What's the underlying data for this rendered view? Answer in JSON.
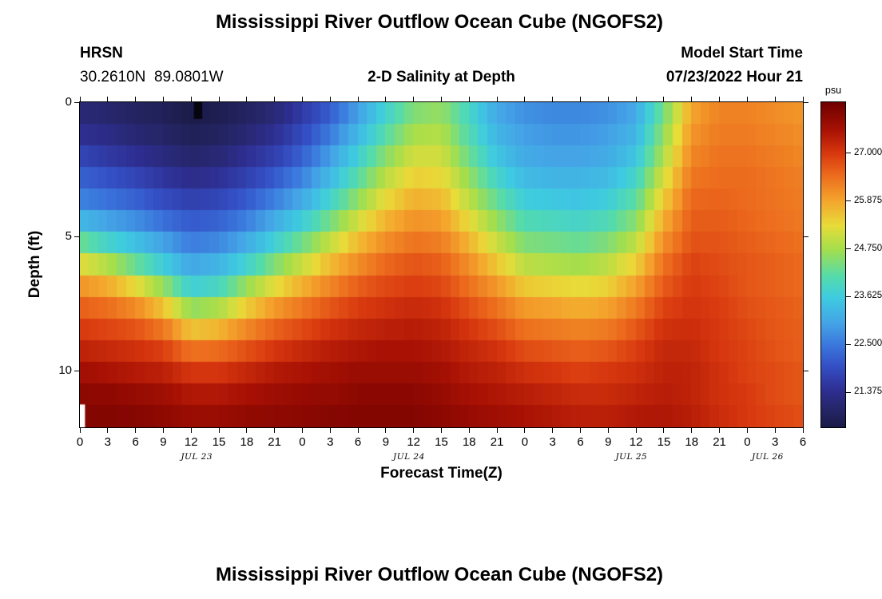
{
  "header": {
    "station_id": "HRSN",
    "station_coords": "30.2610N  89.0801W",
    "model_start_label": "Model Start Time",
    "model_start_value": "07/23/2022 Hour 21"
  },
  "footer": {
    "next_title": "Mississippi River Outflow Ocean Cube (NGOFS2)"
  },
  "chart_data": {
    "type": "heatmap",
    "title": "Mississippi River Outflow Ocean Cube (NGOFS2)",
    "subtitle": "2-D Salinity at Depth",
    "xlabel": "Forecast Time(Z)",
    "ylabel": "Depth (ft)",
    "colorbar_label": "psu",
    "x_range": [
      0,
      78
    ],
    "depth_range": [
      0,
      12.1
    ],
    "value_range": [
      20.55,
      28.2
    ],
    "grid": "off",
    "x_ticks": [
      {
        "hour": 0,
        "label": "0"
      },
      {
        "hour": 3,
        "label": "3"
      },
      {
        "hour": 6,
        "label": "6"
      },
      {
        "hour": 9,
        "label": "9"
      },
      {
        "hour": 12,
        "label": "12"
      },
      {
        "hour": 15,
        "label": "15"
      },
      {
        "hour": 18,
        "label": "18"
      },
      {
        "hour": 21,
        "label": "21"
      },
      {
        "hour": 24,
        "label": "0"
      },
      {
        "hour": 27,
        "label": "3"
      },
      {
        "hour": 30,
        "label": "6"
      },
      {
        "hour": 33,
        "label": "9"
      },
      {
        "hour": 36,
        "label": "12"
      },
      {
        "hour": 39,
        "label": "15"
      },
      {
        "hour": 42,
        "label": "18"
      },
      {
        "hour": 45,
        "label": "21"
      },
      {
        "hour": 48,
        "label": "0"
      },
      {
        "hour": 51,
        "label": "3"
      },
      {
        "hour": 54,
        "label": "6"
      },
      {
        "hour": 57,
        "label": "9"
      },
      {
        "hour": 60,
        "label": "12"
      },
      {
        "hour": 63,
        "label": "15"
      },
      {
        "hour": 66,
        "label": "18"
      },
      {
        "hour": 69,
        "label": "21"
      },
      {
        "hour": 72,
        "label": "0"
      },
      {
        "hour": 75,
        "label": "3"
      },
      {
        "hour": 78,
        "label": "6"
      }
    ],
    "day_labels": [
      {
        "hour": 12.6,
        "label": "JUL 23"
      },
      {
        "hour": 35.5,
        "label": "JUL 24"
      },
      {
        "hour": 59.5,
        "label": "JUL 25"
      },
      {
        "hour": 74.2,
        "label": "JUL 26"
      }
    ],
    "y_ticks": [
      {
        "depth": 0,
        "label": "0"
      },
      {
        "depth": 5,
        "label": "5"
      },
      {
        "depth": 10,
        "label": "10"
      }
    ],
    "colorbar_ticks": [
      {
        "value": 27.0,
        "label": "27.000"
      },
      {
        "value": 25.875,
        "label": "25.875"
      },
      {
        "value": 24.75,
        "label": "24.750"
      },
      {
        "value": 23.625,
        "label": "23.625"
      },
      {
        "value": 22.5,
        "label": "22.500"
      },
      {
        "value": 21.375,
        "label": "21.375"
      }
    ],
    "colormap": [
      {
        "v": 20.55,
        "c": "#1b1b47"
      },
      {
        "v": 21.0,
        "c": "#26266b"
      },
      {
        "v": 21.4,
        "c": "#2e2e91"
      },
      {
        "v": 22.0,
        "c": "#3450c6"
      },
      {
        "v": 22.5,
        "c": "#3b79dd"
      },
      {
        "v": 23.0,
        "c": "#44a4e6"
      },
      {
        "v": 23.6,
        "c": "#3ecbe0"
      },
      {
        "v": 24.1,
        "c": "#55dbab"
      },
      {
        "v": 24.75,
        "c": "#a6de4b"
      },
      {
        "v": 25.3,
        "c": "#e8dc39"
      },
      {
        "v": 25.875,
        "c": "#f4a52d"
      },
      {
        "v": 26.5,
        "c": "#ec6a1d"
      },
      {
        "v": 27.0,
        "c": "#d8380f"
      },
      {
        "v": 27.55,
        "c": "#a81104"
      },
      {
        "v": 28.2,
        "c": "#6f0000"
      }
    ],
    "hours": [
      0,
      3,
      6,
      9,
      12,
      15,
      18,
      21,
      24,
      27,
      30,
      33,
      36,
      39,
      42,
      45,
      48,
      51,
      54,
      57,
      60,
      63,
      66,
      69,
      72,
      75,
      78
    ],
    "depths": [
      0,
      1,
      2,
      3,
      4,
      5,
      6,
      7,
      8,
      9,
      10,
      11,
      12
    ],
    "values": [
      [
        21.0,
        20.9,
        20.8,
        20.7,
        20.5,
        20.6,
        20.8,
        21.0,
        21.5,
        22.0,
        22.8,
        23.6,
        24.3,
        24.5,
        23.8,
        23.0,
        22.7,
        22.6,
        22.6,
        22.7,
        23.0,
        24.2,
        25.8,
        26.2,
        26.2,
        26.1,
        26.0
      ],
      [
        21.3,
        21.2,
        21.0,
        20.9,
        20.7,
        20.8,
        21.0,
        21.3,
        21.8,
        22.4,
        23.2,
        24.0,
        24.7,
        24.8,
        24.0,
        23.2,
        22.9,
        22.8,
        22.8,
        22.9,
        23.2,
        24.5,
        26.0,
        26.3,
        26.3,
        26.2,
        26.1
      ],
      [
        21.8,
        21.6,
        21.4,
        21.2,
        21.0,
        21.1,
        21.4,
        21.7,
        22.2,
        22.9,
        23.7,
        24.5,
        25.1,
        25.1,
        24.3,
        23.5,
        23.1,
        23.0,
        23.0,
        23.1,
        23.5,
        24.8,
        26.2,
        26.4,
        26.4,
        26.3,
        26.2
      ],
      [
        22.3,
        22.1,
        21.9,
        21.6,
        21.4,
        21.5,
        21.8,
        22.2,
        22.7,
        23.4,
        24.2,
        25.0,
        25.5,
        25.4,
        24.7,
        23.9,
        23.4,
        23.3,
        23.3,
        23.4,
        23.9,
        25.2,
        26.4,
        26.5,
        26.5,
        26.4,
        26.3
      ],
      [
        22.8,
        22.6,
        22.4,
        22.1,
        21.9,
        22.0,
        22.3,
        22.8,
        23.3,
        24.0,
        24.8,
        25.5,
        25.9,
        25.8,
        25.1,
        24.4,
        23.8,
        23.7,
        23.6,
        23.8,
        24.3,
        25.6,
        26.6,
        26.6,
        26.5,
        26.4,
        26.3
      ],
      [
        24.0,
        23.5,
        23.2,
        22.8,
        22.4,
        22.5,
        22.9,
        23.5,
        24.1,
        24.8,
        25.5,
        26.0,
        26.3,
        26.2,
        25.6,
        24.9,
        24.3,
        24.2,
        24.1,
        24.3,
        24.8,
        26.0,
        26.7,
        26.7,
        26.6,
        26.5,
        26.4
      ],
      [
        25.2,
        24.8,
        24.2,
        23.6,
        23.0,
        23.2,
        23.7,
        24.4,
        25.0,
        25.6,
        26.1,
        26.5,
        26.7,
        26.6,
        26.1,
        25.5,
        24.9,
        24.8,
        24.7,
        24.9,
        25.4,
        26.4,
        26.9,
        26.8,
        26.7,
        26.6,
        26.5
      ],
      [
        26.2,
        26.0,
        25.5,
        24.8,
        23.8,
        24.0,
        24.8,
        25.4,
        25.9,
        26.3,
        26.7,
        26.9,
        27.0,
        26.9,
        26.5,
        26.1,
        25.6,
        25.5,
        25.4,
        25.5,
        26.0,
        26.7,
        27.0,
        26.9,
        26.7,
        26.6,
        26.5
      ],
      [
        26.8,
        26.7,
        26.5,
        26.0,
        25.0,
        25.2,
        25.8,
        26.3,
        26.6,
        26.9,
        27.1,
        27.2,
        27.3,
        27.2,
        26.9,
        26.6,
        26.2,
        26.1,
        26.0,
        26.1,
        26.5,
        27.0,
        27.1,
        27.0,
        26.8,
        26.7,
        26.6
      ],
      [
        27.2,
        27.1,
        27.0,
        26.8,
        26.2,
        26.3,
        26.6,
        26.9,
        27.1,
        27.3,
        27.4,
        27.5,
        27.5,
        27.4,
        27.2,
        27.0,
        26.7,
        26.6,
        26.5,
        26.6,
        26.9,
        27.2,
        27.2,
        27.0,
        26.9,
        26.7,
        26.6
      ],
      [
        27.6,
        27.5,
        27.4,
        27.3,
        27.0,
        27.0,
        27.2,
        27.4,
        27.5,
        27.6,
        27.7,
        27.7,
        27.7,
        27.6,
        27.4,
        27.3,
        27.1,
        27.0,
        26.9,
        27.0,
        27.1,
        27.3,
        27.3,
        27.1,
        26.9,
        26.8,
        26.7
      ],
      [
        27.9,
        27.9,
        27.8,
        27.7,
        27.5,
        27.5,
        27.6,
        27.7,
        27.8,
        27.8,
        27.9,
        27.9,
        27.9,
        27.8,
        27.6,
        27.5,
        27.4,
        27.3,
        27.2,
        27.2,
        27.3,
        27.4,
        27.3,
        27.1,
        27.0,
        26.8,
        26.7
      ],
      [
        28.0,
        28.0,
        28.0,
        27.9,
        27.8,
        27.8,
        27.9,
        27.9,
        27.9,
        28.0,
        28.0,
        28.0,
        28.0,
        27.9,
        27.8,
        27.7,
        27.6,
        27.5,
        27.4,
        27.4,
        27.5,
        27.5,
        27.4,
        27.2,
        27.0,
        26.9,
        26.8
      ]
    ],
    "markers": [
      {
        "hour_from": 12.3,
        "hour_to": 13.2,
        "depth_from": 0,
        "depth_to": 0.62,
        "color": "#050510"
      },
      {
        "hour_from": 0,
        "hour_to": 0.55,
        "depth_from": 11.25,
        "depth_to": 12.1,
        "color": "#ffffff"
      }
    ]
  }
}
